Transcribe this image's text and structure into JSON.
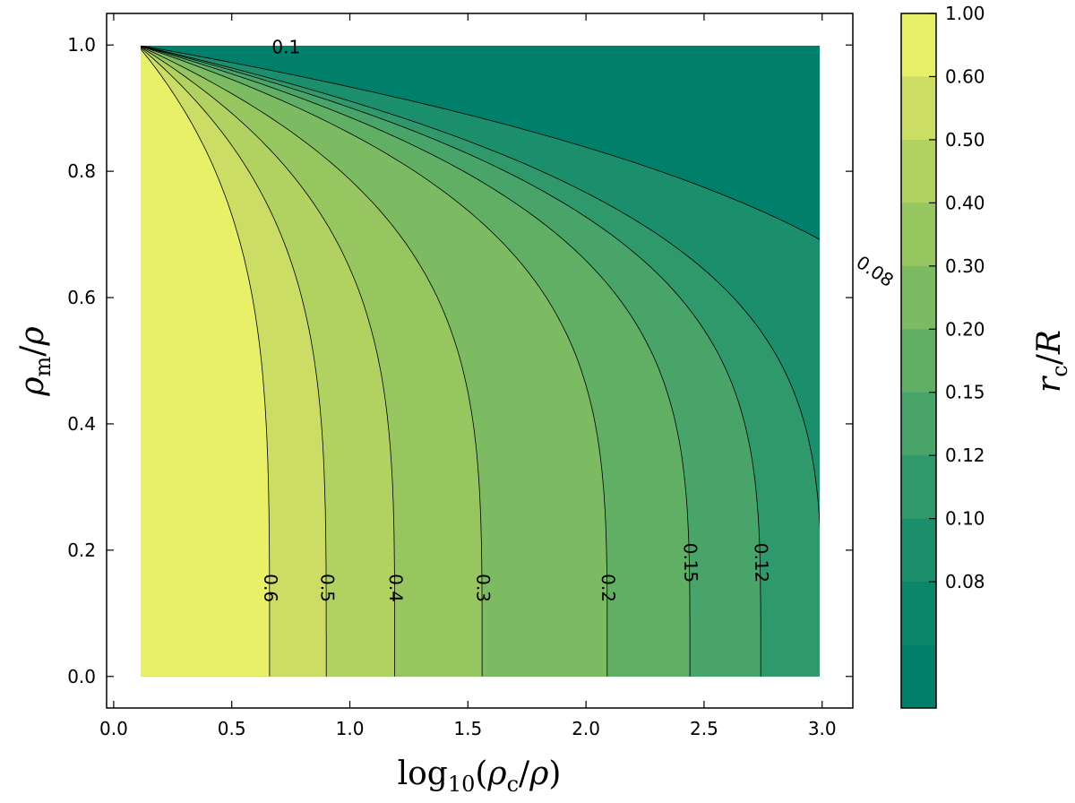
{
  "chart_data": {
    "type": "contourf",
    "x_axis": {
      "label_math": "log10(ρc/ρ)",
      "label_parts": {
        "fn": "log",
        "sub": "10",
        "lp": "(",
        "rho1": "ρ",
        "rho1_sub": "c",
        "slash": "/",
        "rho2": "ρ",
        "rp": ")"
      },
      "range": [
        -0.03,
        3.13
      ],
      "data_range": [
        0.1,
        3.0
      ],
      "ticks": [
        "0.0",
        "0.5",
        "1.0",
        "1.5",
        "2.0",
        "2.5",
        "3.0"
      ],
      "tick_values": [
        0.0,
        0.5,
        1.0,
        1.5,
        2.0,
        2.5,
        3.0
      ]
    },
    "y_axis": {
      "label_math": "ρm/ρ",
      "label_parts": {
        "rho1": "ρ",
        "rho1_sub": "m",
        "slash": "/",
        "rho2": "ρ"
      },
      "range": [
        -0.05,
        1.05
      ],
      "data_range": [
        0.0,
        1.0
      ],
      "ticks": [
        "0.0",
        "0.2",
        "0.4",
        "0.6",
        "0.8",
        "1.0"
      ],
      "tick_values": [
        0.0,
        0.2,
        0.4,
        0.6,
        0.8,
        1.0
      ]
    },
    "colorbar": {
      "label_math": "rc/R",
      "label_parts": {
        "r": "r",
        "r_sub": "c",
        "slash": "/",
        "R": "R"
      },
      "levels": [
        0.08,
        0.1,
        0.12,
        0.15,
        0.2,
        0.3,
        0.4,
        0.5,
        0.6,
        1.0
      ],
      "tick_labels": [
        "0.08",
        "0.10",
        "0.12",
        "0.15",
        "0.20",
        "0.30",
        "0.40",
        "0.50",
        "0.60",
        "1.00"
      ],
      "band_colors": [
        "#007f6a",
        "#0b866b",
        "#1b8f6c",
        "#2f996b",
        "#48a468",
        "#61af65",
        "#7cbb62",
        "#97c660",
        "#b1d260",
        "#cbdd65",
        "#e8f068"
      ]
    },
    "contours": [
      {
        "label": "0.6",
        "x_at_bottom": 0.66
      },
      {
        "label": "0.5",
        "x_at_bottom": 0.9
      },
      {
        "label": "0.4",
        "x_at_bottom": 1.19
      },
      {
        "label": "0.3",
        "x_at_bottom": 1.56
      },
      {
        "label": "0.2",
        "x_at_bottom": 2.09
      },
      {
        "label": "0.15",
        "x_at_bottom": 2.44
      },
      {
        "label": "0.12",
        "x_at_bottom": 2.74
      },
      {
        "label": "0.1",
        "x_at_bottom": 3.0
      },
      {
        "label": "0.08",
        "x_at_bottom": 3.0
      }
    ],
    "grid": false
  }
}
